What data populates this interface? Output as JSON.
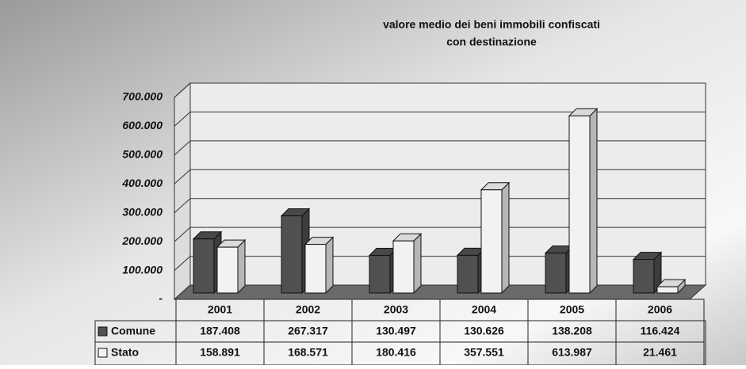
{
  "chart_data": {
    "type": "bar3d",
    "title": [
      "valore medio dei beni immobili confiscati",
      "con destinazione"
    ],
    "categories": [
      "2001",
      "2002",
      "2003",
      "2004",
      "2005",
      "2006"
    ],
    "series": [
      {
        "name": "Comune",
        "color": "#505050",
        "values": [
          187408,
          267317,
          130497,
          130626,
          138208,
          116424
        ],
        "value_labels": [
          "187.408",
          "267.317",
          "130.497",
          "130.626",
          "138.208",
          "116.424"
        ]
      },
      {
        "name": "Stato",
        "color": "#f2f2f2",
        "values": [
          158891,
          168571,
          180416,
          357551,
          613987,
          21461
        ],
        "value_labels": [
          "158.891",
          "168.571",
          "180.416",
          "357.551",
          "613.987",
          "21.461"
        ]
      }
    ],
    "ylim": [
      0,
      700000
    ],
    "yticks": [
      {
        "value": 0,
        "label": "-"
      },
      {
        "value": 100000,
        "label": "100.000"
      },
      {
        "value": 200000,
        "label": "200.000"
      },
      {
        "value": 300000,
        "label": "300.000"
      },
      {
        "value": 400000,
        "label": "400.000"
      },
      {
        "value": 500000,
        "label": "500.000"
      },
      {
        "value": 600000,
        "label": "600.000"
      },
      {
        "value": 700000,
        "label": "700.000"
      }
    ],
    "grid": true
  }
}
